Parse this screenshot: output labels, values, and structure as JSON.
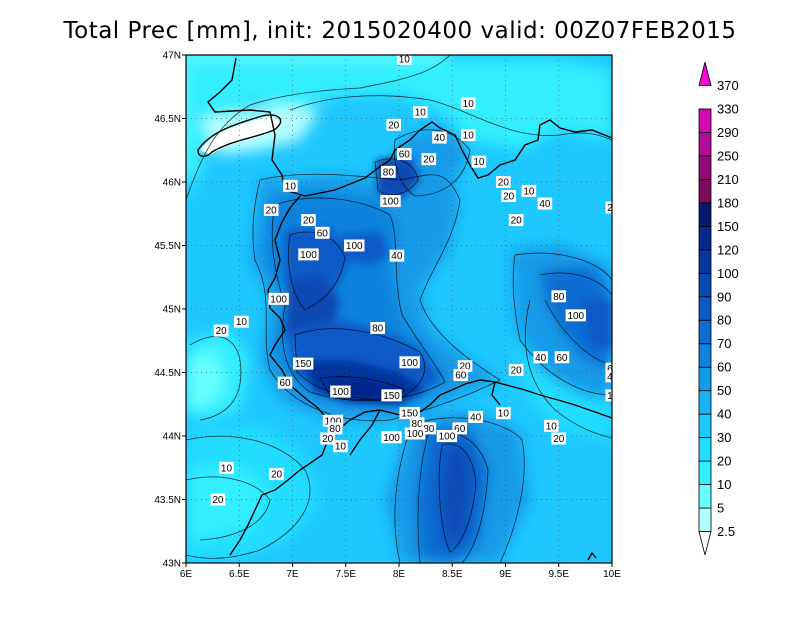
{
  "title": "Total Prec [mm], init: 2015020400  valid: 00Z07FEB2015",
  "map": {
    "lon_range": [
      6,
      10
    ],
    "lat_range": [
      43,
      47
    ],
    "x_ticks": [
      "6E",
      "6.5E",
      "7E",
      "7.5E",
      "8E",
      "8.5E",
      "9E",
      "9.5E",
      "10E"
    ],
    "y_ticks": [
      "47N",
      "46.5N",
      "46N",
      "45.5N",
      "45N",
      "44.5N",
      "44N",
      "43.5N",
      "43N"
    ],
    "grid": "dotted"
  },
  "legend": {
    "levels": [
      "2.5",
      "5",
      "10",
      "20",
      "30",
      "40",
      "50",
      "60",
      "70",
      "80",
      "90",
      "100",
      "120",
      "150",
      "180",
      "210",
      "250",
      "290",
      "330",
      "370"
    ],
    "colors": [
      "#ffffff",
      "#b4ffff",
      "#66ffff",
      "#33eeff",
      "#22ddff",
      "#1ec8ff",
      "#18b4f5",
      "#129be8",
      "#0e82dc",
      "#0c6cd2",
      "#0a5ac8",
      "#0848b4",
      "#0636a0",
      "#05288c",
      "#041a6e",
      "#7a0a5a",
      "#960a78",
      "#b40a96",
      "#d20ab4",
      "#f00ad2"
    ]
  },
  "contour_labels": [
    {
      "text": "10",
      "lon": 8.05,
      "lat": 46.97
    },
    {
      "text": "10",
      "lon": 8.2,
      "lat": 46.55
    },
    {
      "text": "10",
      "lon": 8.65,
      "lat": 46.62
    },
    {
      "text": "20",
      "lon": 7.95,
      "lat": 46.45
    },
    {
      "text": "10",
      "lon": 8.65,
      "lat": 46.37
    },
    {
      "text": "40",
      "lon": 8.38,
      "lat": 46.35
    },
    {
      "text": "60",
      "lon": 8.05,
      "lat": 46.22
    },
    {
      "text": "20",
      "lon": 8.28,
      "lat": 46.18
    },
    {
      "text": "10",
      "lon": 8.75,
      "lat": 46.16
    },
    {
      "text": "80",
      "lon": 7.9,
      "lat": 46.08
    },
    {
      "text": "20",
      "lon": 8.98,
      "lat": 46.0
    },
    {
      "text": "10",
      "lon": 9.22,
      "lat": 45.93
    },
    {
      "text": "20",
      "lon": 9.03,
      "lat": 45.89
    },
    {
      "text": "40",
      "lon": 9.37,
      "lat": 45.83
    },
    {
      "text": "100",
      "lon": 7.92,
      "lat": 45.85
    },
    {
      "text": "10",
      "lon": 6.98,
      "lat": 45.97
    },
    {
      "text": "20",
      "lon": 6.8,
      "lat": 45.78
    },
    {
      "text": "20",
      "lon": 7.15,
      "lat": 45.7
    },
    {
      "text": "20",
      "lon": 9.1,
      "lat": 45.7
    },
    {
      "text": "60",
      "lon": 7.28,
      "lat": 45.6
    },
    {
      "text": "100",
      "lon": 7.58,
      "lat": 45.5
    },
    {
      "text": "100",
      "lon": 7.15,
      "lat": 45.43
    },
    {
      "text": "40",
      "lon": 7.98,
      "lat": 45.42
    },
    {
      "text": "80",
      "lon": 9.5,
      "lat": 45.1
    },
    {
      "text": "100",
      "lon": 6.87,
      "lat": 45.08
    },
    {
      "text": "100",
      "lon": 9.66,
      "lat": 44.95
    },
    {
      "text": "10",
      "lon": 6.52,
      "lat": 44.9
    },
    {
      "text": "20",
      "lon": 6.33,
      "lat": 44.83
    },
    {
      "text": "80",
      "lon": 7.8,
      "lat": 44.85
    },
    {
      "text": "40",
      "lon": 9.33,
      "lat": 44.62
    },
    {
      "text": "60",
      "lon": 9.53,
      "lat": 44.62
    },
    {
      "text": "100",
      "lon": 8.1,
      "lat": 44.58
    },
    {
      "text": "150",
      "lon": 7.1,
      "lat": 44.57
    },
    {
      "text": "20",
      "lon": 8.62,
      "lat": 44.55
    },
    {
      "text": "20",
      "lon": 9.1,
      "lat": 44.52
    },
    {
      "text": "60",
      "lon": 8.58,
      "lat": 44.48
    },
    {
      "text": "60",
      "lon": 6.93,
      "lat": 44.42
    },
    {
      "text": "100",
      "lon": 7.45,
      "lat": 44.35
    },
    {
      "text": "150",
      "lon": 7.93,
      "lat": 44.32
    },
    {
      "text": "150",
      "lon": 8.1,
      "lat": 44.18
    },
    {
      "text": "10",
      "lon": 8.98,
      "lat": 44.18
    },
    {
      "text": "40",
      "lon": 8.72,
      "lat": 44.15
    },
    {
      "text": "100",
      "lon": 7.38,
      "lat": 44.12
    },
    {
      "text": "80",
      "lon": 8.17,
      "lat": 44.1
    },
    {
      "text": "10",
      "lon": 9.43,
      "lat": 44.08
    },
    {
      "text": "80",
      "lon": 7.4,
      "lat": 44.06
    },
    {
      "text": "80",
      "lon": 8.28,
      "lat": 44.06
    },
    {
      "text": "60",
      "lon": 8.57,
      "lat": 44.06
    },
    {
      "text": "100",
      "lon": 7.93,
      "lat": 43.99
    },
    {
      "text": "100",
      "lon": 8.15,
      "lat": 44.02
    },
    {
      "text": "100",
      "lon": 8.45,
      "lat": 44.0
    },
    {
      "text": "20",
      "lon": 7.33,
      "lat": 43.98
    },
    {
      "text": "20",
      "lon": 9.5,
      "lat": 43.98
    },
    {
      "text": "10",
      "lon": 7.45,
      "lat": 43.92
    },
    {
      "text": "10",
      "lon": 6.38,
      "lat": 43.75
    },
    {
      "text": "20",
      "lon": 6.85,
      "lat": 43.7
    },
    {
      "text": "20",
      "lon": 6.3,
      "lat": 43.5
    },
    {
      "text": "2",
      "lon": 9.98,
      "lat": 45.8
    },
    {
      "text": "6",
      "lon": 9.98,
      "lat": 44.53
    },
    {
      "text": "4",
      "lon": 9.98,
      "lat": 44.47
    },
    {
      "text": "1",
      "lon": 9.98,
      "lat": 44.32
    }
  ]
}
